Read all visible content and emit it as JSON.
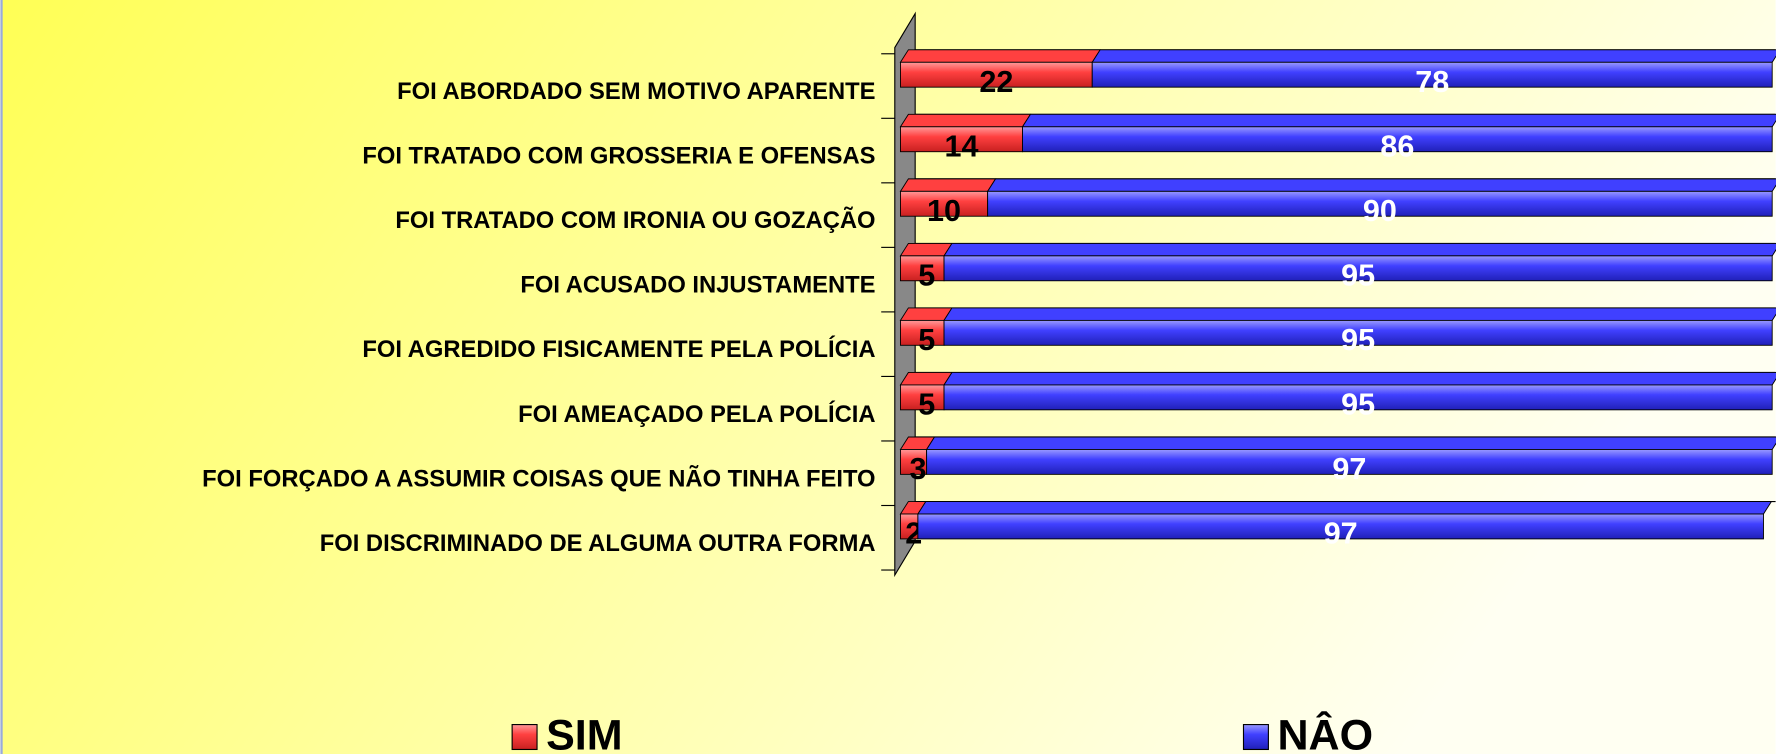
{
  "chart_data": {
    "type": "bar",
    "orientation": "horizontal",
    "stacked": true,
    "categories": [
      "FOI ABORDADO SEM MOTIVO APARENTE",
      "FOI TRATADO COM GROSSERIA E OFENSAS",
      "FOI TRATADO COM IRONIA OU GOZAÇÃO",
      "FOI ACUSADO INJUSTAMENTE",
      "FOI AGREDIDO FISICAMENTE PELA POLÍCIA",
      "FOI AMEAÇADO PELA POLÍCIA",
      "FOI FORÇADO A ASSUMIR COISAS QUE NÃO TINHA FEITO",
      "FOI DISCRIMINADO DE ALGUMA OUTRA FORMA"
    ],
    "series": [
      {
        "name": "SIM",
        "color": "#ff4040",
        "values": [
          22,
          14,
          10,
          5,
          5,
          5,
          3,
          2
        ]
      },
      {
        "name": "NÂO",
        "color": "#4040ff",
        "values": [
          78,
          86,
          90,
          95,
          95,
          95,
          97,
          97
        ]
      }
    ],
    "xlim": [
      0,
      100
    ]
  }
}
